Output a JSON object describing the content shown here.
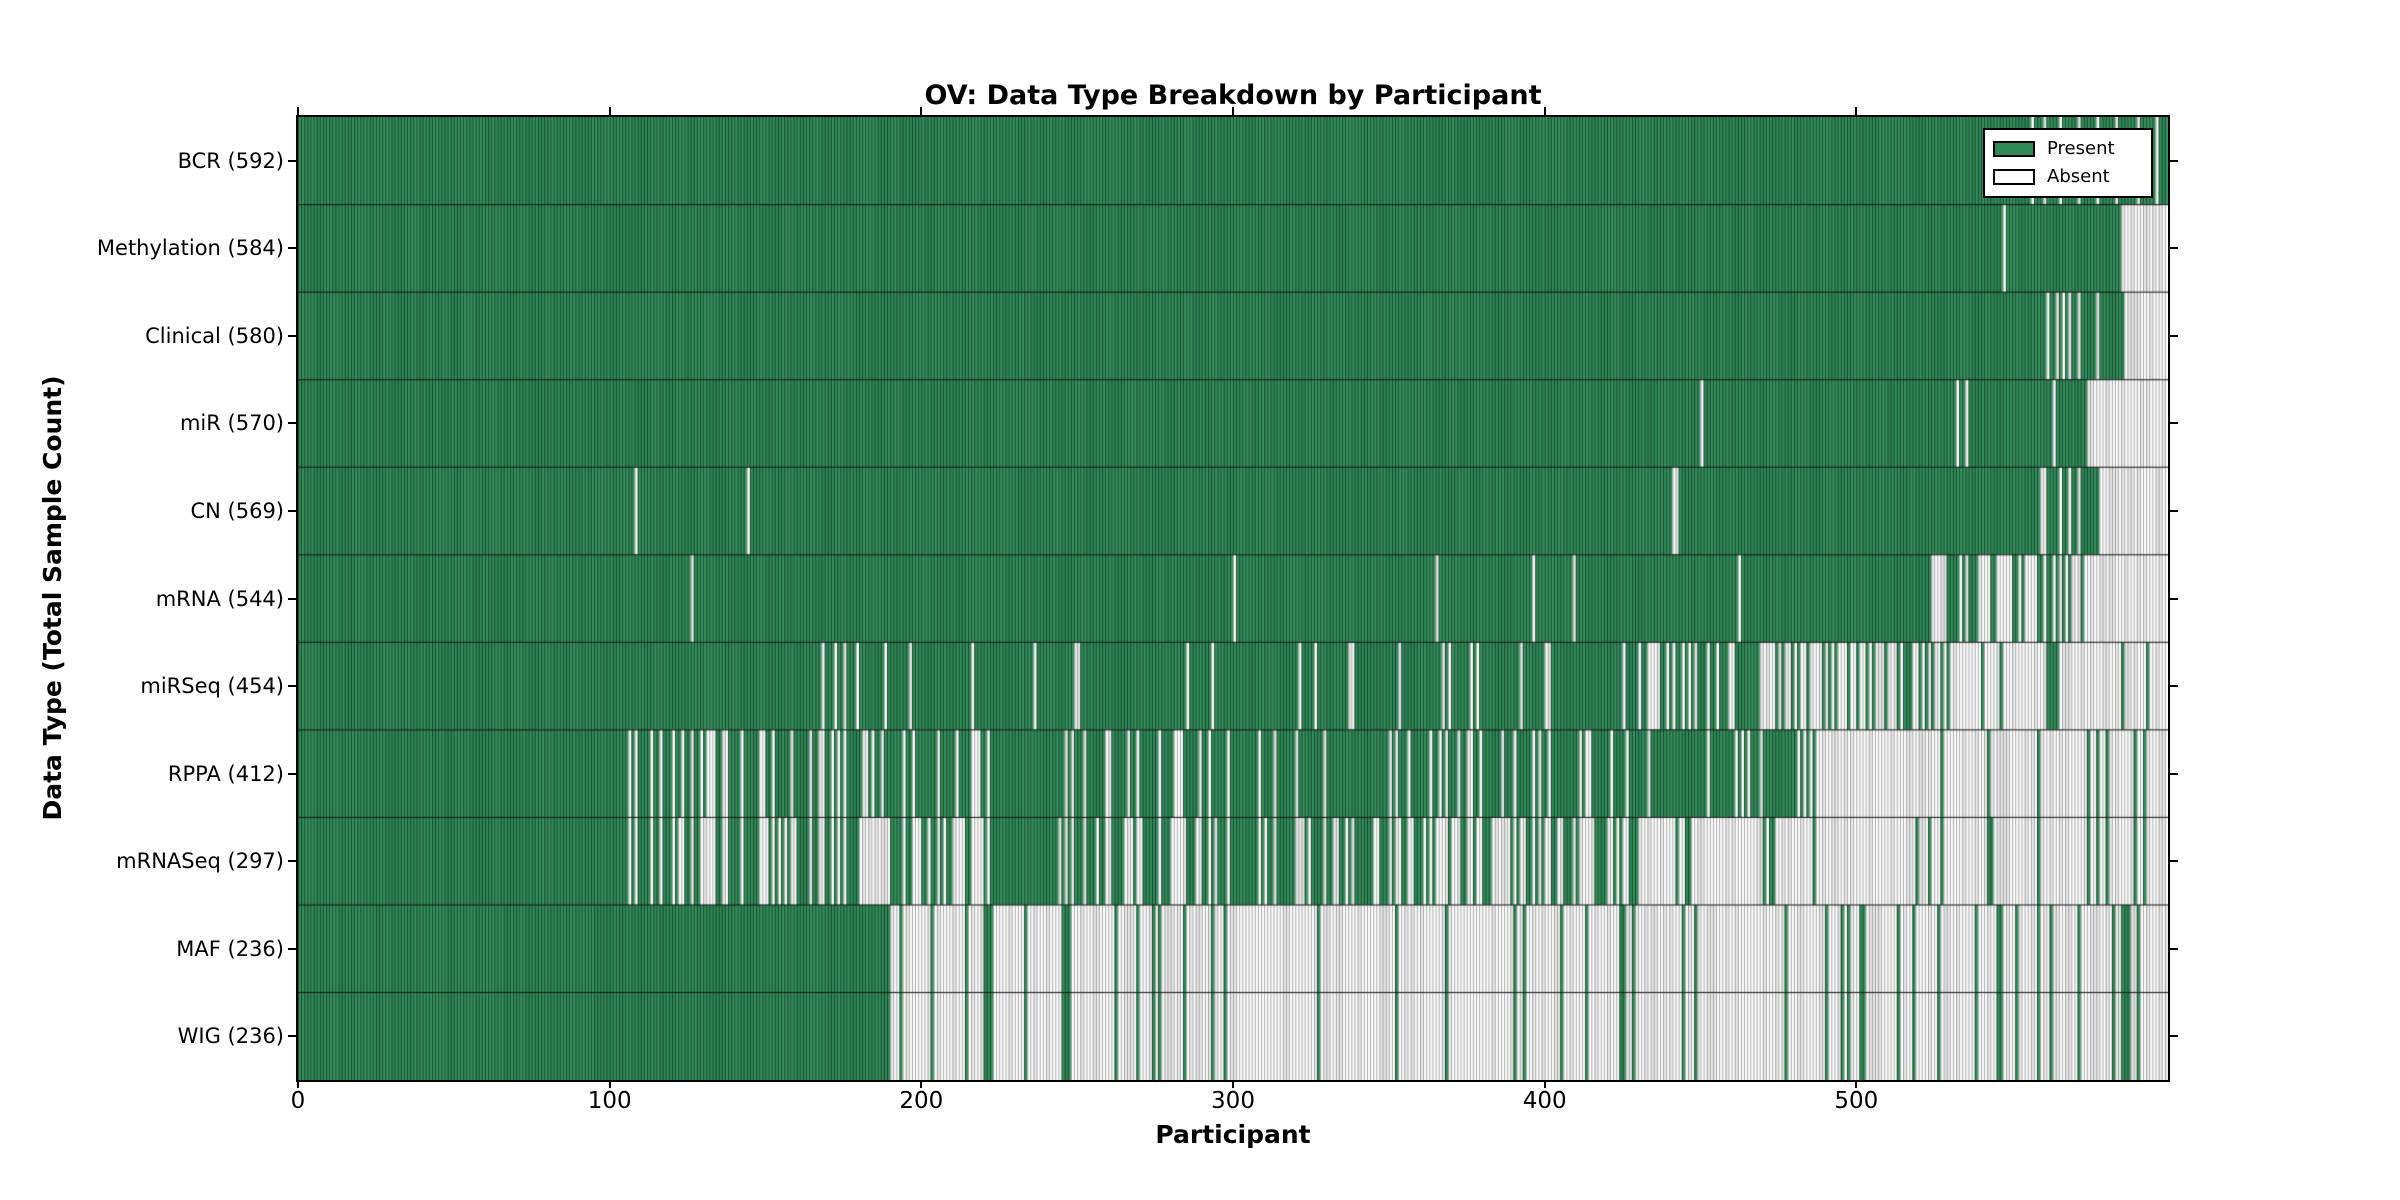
{
  "figure_title": "OV: Data Type Breakdown by Participant",
  "chart_data": {
    "type": "heatmap",
    "title": "OV: Data Type Breakdown by Participant",
    "xlabel": "Participant",
    "ylabel": "Data Type (Total Sample Count)",
    "n_participants": 600,
    "x_range": [
      0,
      600
    ],
    "xticks": [
      "0",
      "100",
      "200",
      "300",
      "400",
      "500"
    ],
    "legend": [
      {
        "label": "Present",
        "color": "#2f8a57"
      },
      {
        "label": "Absent",
        "color": "#ffffff"
      }
    ],
    "legend_position": "upper right",
    "grid": false,
    "colors": {
      "present": "#2f8a57",
      "present_alt": "#36925e",
      "present_edge": "rgba(8,32,20,0.72)",
      "absent": "#ffffff",
      "absent_alt": "#e9e9e9",
      "absent_edge": "rgba(105,105,105,0.65)",
      "row_line": "rgba(15,15,15,0.9)",
      "frame": "#000000"
    },
    "rows": [
      {
        "name": "BCR",
        "count": 592,
        "display": "BCR (592)",
        "seed": 11,
        "segments": [
          [
            0,
            600,
            1
          ]
        ],
        "absent": [
          556,
          560,
          565,
          571,
          577,
          583,
          590,
          596
        ]
      },
      {
        "name": "Methylation",
        "count": 584,
        "display": "Methylation (584)",
        "seed": 12,
        "segments": [
          [
            0,
            585,
            1
          ],
          [
            585,
            600,
            0
          ]
        ],
        "absent": [
          547
        ]
      },
      {
        "name": "Clinical",
        "count": 580,
        "display": "Clinical (580)",
        "seed": 13,
        "segments": [
          [
            0,
            586,
            1
          ],
          [
            586,
            600,
            0
          ]
        ],
        "absent": [
          561,
          564,
          566,
          568,
          571,
          577
        ]
      },
      {
        "name": "miR",
        "count": 570,
        "display": "miR (570)",
        "seed": 14,
        "segments": [
          [
            0,
            574,
            1
          ],
          [
            574,
            600,
            0
          ]
        ],
        "absent": [
          450,
          532,
          535,
          563
        ]
      },
      {
        "name": "CN",
        "count": 569,
        "display": "CN (569)",
        "seed": 15,
        "segments": [
          [
            0,
            578,
            1
          ],
          [
            578,
            600,
            0
          ]
        ],
        "absent": [
          108,
          144,
          441,
          442,
          559,
          560,
          565,
          568,
          571
        ]
      },
      {
        "name": "mRNA",
        "count": 544,
        "display": "mRNA (544)",
        "seed": 16,
        "segments": [
          [
            0,
            522,
            1
          ],
          [
            522,
            558,
            0.55
          ],
          [
            558,
            574,
            0.5
          ],
          [
            574,
            600,
            0
          ]
        ],
        "absent": [
          126,
          300,
          365,
          396,
          409,
          462
        ]
      },
      {
        "name": "miRSeq",
        "count": 454,
        "display": "miRSeq (454)",
        "seed": 17,
        "segments": [
          [
            0,
            160,
            1
          ],
          [
            160,
            230,
            0.92
          ],
          [
            230,
            330,
            0.94
          ],
          [
            330,
            430,
            0.88
          ],
          [
            430,
            470,
            0.5
          ],
          [
            470,
            530,
            0.35
          ],
          [
            530,
            600,
            0.15
          ]
        ],
        "absent": [
          168,
          175,
          188,
          216,
          293,
          321,
          338
        ]
      },
      {
        "name": "RPPA",
        "count": 412,
        "display": "RPPA (412)",
        "seed": 18,
        "segments": [
          [
            0,
            105,
            1
          ],
          [
            105,
            190,
            0.6
          ],
          [
            190,
            430,
            0.82
          ],
          [
            430,
            485,
            0.9
          ],
          [
            485,
            600,
            0.08
          ]
        ],
        "absent": []
      },
      {
        "name": "mRNASeq",
        "count": 297,
        "display": "mRNASeq (297)",
        "seed": 18,
        "segments": [
          [
            0,
            105,
            1
          ],
          [
            105,
            190,
            0.5
          ],
          [
            190,
            330,
            0.58
          ],
          [
            330,
            430,
            0.45
          ],
          [
            430,
            600,
            0.13
          ]
        ],
        "absent": [
          180,
          181,
          182,
          183,
          184,
          185,
          186,
          187,
          188,
          189
        ]
      },
      {
        "name": "MAF",
        "count": 236,
        "display": "MAF (236)",
        "seed": 20,
        "segments": [
          [
            0,
            190,
            1
          ],
          [
            190,
            600,
            0.112
          ]
        ],
        "present": [
          490,
          502
        ]
      },
      {
        "name": "WIG",
        "count": 236,
        "display": "WIG (236)",
        "seed": 20,
        "segments": [
          [
            0,
            190,
            1
          ],
          [
            190,
            600,
            0.112
          ]
        ],
        "present": [
          490,
          502
        ]
      }
    ]
  }
}
